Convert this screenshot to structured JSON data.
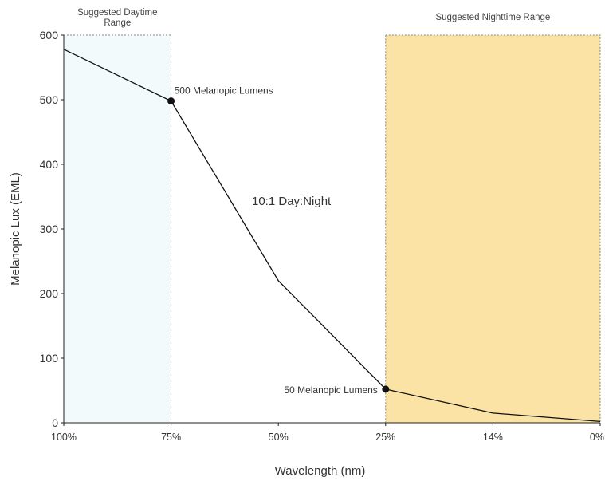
{
  "chart_data": {
    "type": "line",
    "title": "",
    "xlabel": "Wavelength (nm)",
    "ylabel": "Melanopic Lux (EML)",
    "x_categories": [
      "100%",
      "75%",
      "50%",
      "25%",
      "14%",
      "0%"
    ],
    "ylim": [
      0,
      600
    ],
    "yticks": [
      0,
      100,
      200,
      300,
      400,
      500,
      600
    ],
    "series": [
      {
        "name": "",
        "points": [
          {
            "x": "100%",
            "y": 578
          },
          {
            "x": "75%",
            "y": 498
          },
          {
            "x": "50%",
            "y": 220
          },
          {
            "x": "25%",
            "y": 52
          },
          {
            "x": "14%",
            "y": 15
          },
          {
            "x": "0%",
            "y": 2
          }
        ],
        "color": "#111111"
      }
    ],
    "markers": [
      {
        "x": "75%",
        "y": 498,
        "label": "500 Melanopic Lumens"
      },
      {
        "x": "25%",
        "y": 52,
        "label": "50 Melanopic Lumens"
      }
    ],
    "regions": [
      {
        "label_lines": [
          "Suggested Daytime",
          "Range"
        ],
        "from": "100%",
        "to": "75%",
        "color": "#f3fafb"
      },
      {
        "label_lines": [
          "Suggested Nighttime Range"
        ],
        "from": "25%",
        "to": "0%",
        "color": "#fae3a4"
      }
    ],
    "annotations": [
      {
        "text": "10:1 Day:Night"
      }
    ],
    "grid": false
  }
}
